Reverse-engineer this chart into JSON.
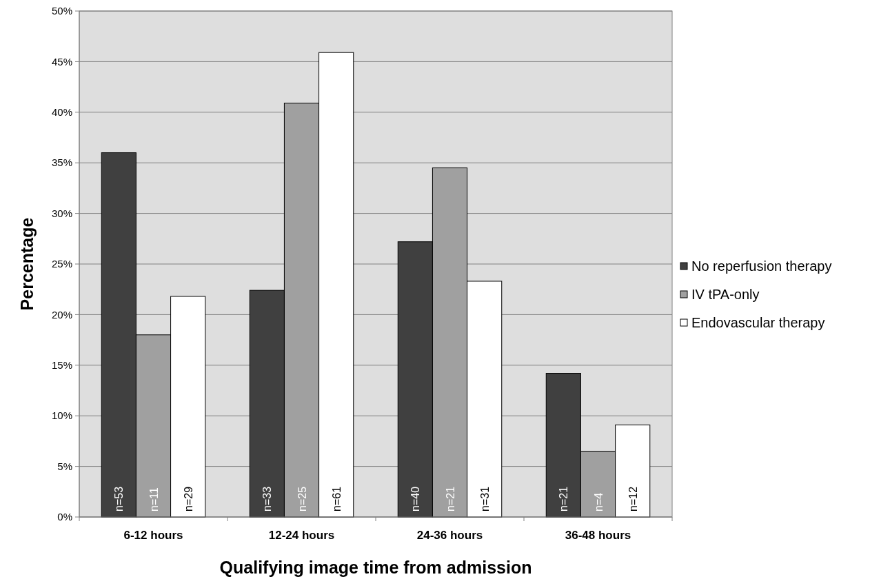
{
  "chart_data": {
    "type": "bar",
    "xlabel": "Qualifying image time from admission",
    "ylabel": "Percentage",
    "categories": [
      "6-12 hours",
      "12-24 hours",
      "24-36 hours",
      "36-48 hours"
    ],
    "series": [
      {
        "name": "No reperfusion therapy",
        "color": "#404040",
        "values": [
          36.0,
          22.4,
          27.2,
          14.2
        ]
      },
      {
        "name": "IV tPA-only",
        "color": "#a0a0a0",
        "values": [
          18.0,
          40.9,
          34.5,
          6.5
        ]
      },
      {
        "name": "Endovascular therapy",
        "color": "#ffffff",
        "values": [
          21.8,
          45.9,
          23.3,
          9.1
        ]
      }
    ],
    "annotations": [
      {
        "text": "n=53",
        "x": "6-12 hours",
        "y": 0
      },
      {
        "text": "n=11",
        "x": "6-12 hours",
        "y": 0
      },
      {
        "text": "n=29",
        "x": "6-12 hours",
        "y": 0
      },
      {
        "text": "n=33",
        "x": "12-24 hours",
        "y": 0
      },
      {
        "text": "n=25",
        "x": "12-24 hours",
        "y": 0
      },
      {
        "text": "n=61",
        "x": "12-24 hours",
        "y": 0
      },
      {
        "text": "n=40",
        "x": "24-36 hours",
        "y": 0
      },
      {
        "text": "n=21",
        "x": "24-36 hours",
        "y": 0
      },
      {
        "text": "n=31",
        "x": "24-36 hours",
        "y": 0
      },
      {
        "text": "n=21",
        "x": "36-48 hours",
        "y": 0
      },
      {
        "text": "n=4",
        "x": "36-48 hours",
        "y": 0
      },
      {
        "text": "n=12",
        "x": "36-48 hours",
        "y": 0
      }
    ],
    "ylim": [
      0,
      50
    ],
    "yticks": [
      {
        "value": 0,
        "label": "0%"
      },
      {
        "value": 5,
        "label": "5%"
      },
      {
        "value": 10,
        "label": "10%"
      },
      {
        "value": 15,
        "label": "15%"
      },
      {
        "value": 20,
        "label": "20%"
      },
      {
        "value": 25,
        "label": "25%"
      },
      {
        "value": 30,
        "label": "30%"
      },
      {
        "value": 35,
        "label": "35%"
      },
      {
        "value": 40,
        "label": "40%"
      },
      {
        "value": 45,
        "label": "45%"
      },
      {
        "value": 50,
        "label": "50%"
      }
    ],
    "grid": "y",
    "legend": "right"
  }
}
